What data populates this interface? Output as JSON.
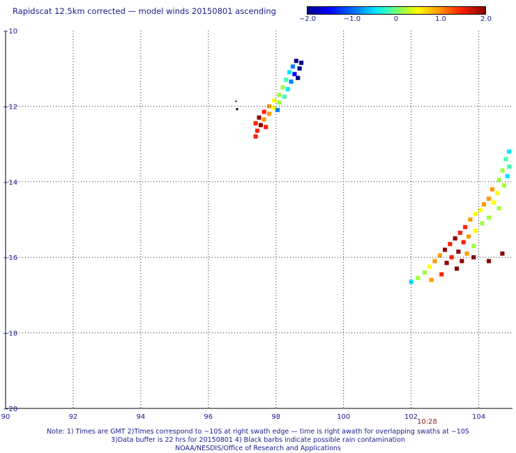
{
  "title": "Rapidscat 12.5km corrected — model winds 20150801 ascending",
  "colorbar": {
    "labels": [
      "−2.0",
      "−1.0",
      "0",
      "1.0",
      "2.0"
    ],
    "min": -2.0,
    "max": 2.0,
    "colors": [
      "#00008b",
      "#0000ff",
      "#0080ff",
      "#00e5ff",
      "#40ffb0",
      "#a0ff40",
      "#ffff00",
      "#ff9900",
      "#ff2200",
      "#8b0000"
    ]
  },
  "axes": {
    "lat_labels": [
      "−10",
      "−12",
      "−14",
      "−16",
      "−18",
      "−20"
    ],
    "lon_labels": [
      "90",
      "92",
      "94",
      "96",
      "98",
      "100",
      "102",
      "104"
    ],
    "lat_range": [
      -20,
      -10
    ],
    "lon_range": [
      90,
      105
    ],
    "grid": true,
    "grid_style": "dotted"
  },
  "timestamp": "10:28",
  "notes": [
    "Note: 1) Times are GMT 2)Times correspond to −10S at right swath edge — time is right awath for overlapping swaths at −10S",
    "3)Data buffer is 22 hrs for 20150801 4) Black barbs indicate possible rain contamination",
    "NOAA/NESDIS/Office of Research and Applications"
  ],
  "chart_data": {
    "type": "heatmap",
    "value_range": [
      -2.0,
      2.0
    ],
    "cell_size_deg": [
      0.125,
      0.11
    ],
    "swaths": [
      {
        "name": "",
        "cells": [
          [
            98.6,
            -10.8,
            -1.7
          ],
          [
            98.75,
            -10.85,
            -1.9
          ],
          [
            98.5,
            -10.95,
            -1.2
          ],
          [
            98.7,
            -11.0,
            -1.8
          ],
          [
            98.4,
            -11.1,
            -0.8
          ],
          [
            98.55,
            -11.15,
            -1.4
          ],
          [
            98.65,
            -11.25,
            -1.6
          ],
          [
            98.3,
            -11.3,
            -0.3
          ],
          [
            98.45,
            -11.35,
            -0.9
          ],
          [
            98.2,
            -11.5,
            0.1
          ],
          [
            98.35,
            -11.55,
            -0.5
          ],
          [
            98.1,
            -11.7,
            0.3
          ],
          [
            98.25,
            -11.75,
            -0.2
          ],
          [
            97.95,
            -11.85,
            0.6
          ],
          [
            98.1,
            -11.9,
            0.2
          ],
          [
            97.8,
            -12.0,
            0.9
          ],
          [
            97.95,
            -12.05,
            0.5
          ],
          [
            98.05,
            -12.1,
            -1.2
          ],
          [
            97.65,
            -12.15,
            1.3
          ],
          [
            97.8,
            -12.2,
            0.8
          ],
          [
            97.5,
            -12.3,
            1.6
          ],
          [
            97.65,
            -12.35,
            1.1
          ],
          [
            97.4,
            -12.45,
            1.5
          ],
          [
            97.55,
            -12.5,
            1.9
          ],
          [
            97.7,
            -12.55,
            1.2
          ],
          [
            97.45,
            -12.65,
            1.4
          ],
          [
            97.4,
            -12.8,
            1.2
          ]
        ]
      },
      {
        "name": "",
        "cells": [
          [
            104.9,
            -13.2,
            -0.6
          ],
          [
            104.8,
            -13.4,
            -0.4
          ],
          [
            104.9,
            -13.6,
            -0.2
          ],
          [
            104.7,
            -13.7,
            0.1
          ],
          [
            104.85,
            -13.85,
            -0.5
          ],
          [
            104.6,
            -13.95,
            0.3
          ],
          [
            104.75,
            -14.1,
            0.0
          ],
          [
            104.4,
            -14.2,
            0.8
          ],
          [
            104.55,
            -14.3,
            0.4
          ],
          [
            104.3,
            -14.45,
            1.1
          ],
          [
            104.45,
            -14.55,
            0.6
          ],
          [
            104.15,
            -14.6,
            1.0
          ],
          [
            104.6,
            -14.7,
            0.2
          ],
          [
            104.05,
            -14.75,
            0.5
          ],
          [
            103.9,
            -14.85,
            0.7
          ],
          [
            104.3,
            -14.95,
            0.3
          ],
          [
            103.75,
            -15.0,
            0.9
          ],
          [
            104.1,
            -15.1,
            0.1
          ],
          [
            103.6,
            -15.2,
            1.2
          ],
          [
            103.9,
            -15.3,
            0.4
          ],
          [
            103.45,
            -15.35,
            1.5
          ],
          [
            103.7,
            -15.45,
            0.9
          ],
          [
            103.3,
            -15.5,
            1.7
          ],
          [
            103.55,
            -15.6,
            1.3
          ],
          [
            103.15,
            -15.65,
            1.4
          ],
          [
            103.85,
            -15.7,
            0.3
          ],
          [
            103.0,
            -15.8,
            1.6
          ],
          [
            103.4,
            -15.85,
            1.8
          ],
          [
            103.65,
            -15.9,
            0.8
          ],
          [
            102.85,
            -15.95,
            1.1
          ],
          [
            103.2,
            -16.0,
            1.5
          ],
          [
            102.7,
            -16.1,
            0.9
          ],
          [
            103.5,
            -16.1,
            1.7
          ],
          [
            103.05,
            -16.15,
            1.9
          ],
          [
            102.55,
            -16.25,
            0.4
          ],
          [
            103.35,
            -16.3,
            2.0
          ],
          [
            102.4,
            -16.4,
            0.2
          ],
          [
            102.9,
            -16.45,
            1.2
          ],
          [
            102.2,
            -16.55,
            0.0
          ],
          [
            102.6,
            -16.6,
            0.8
          ],
          [
            102.0,
            -16.65,
            -0.6
          ],
          [
            104.7,
            -15.9,
            1.9
          ],
          [
            104.3,
            -16.1,
            2.0
          ],
          [
            103.85,
            -16.0,
            2.0
          ]
        ]
      }
    ]
  }
}
